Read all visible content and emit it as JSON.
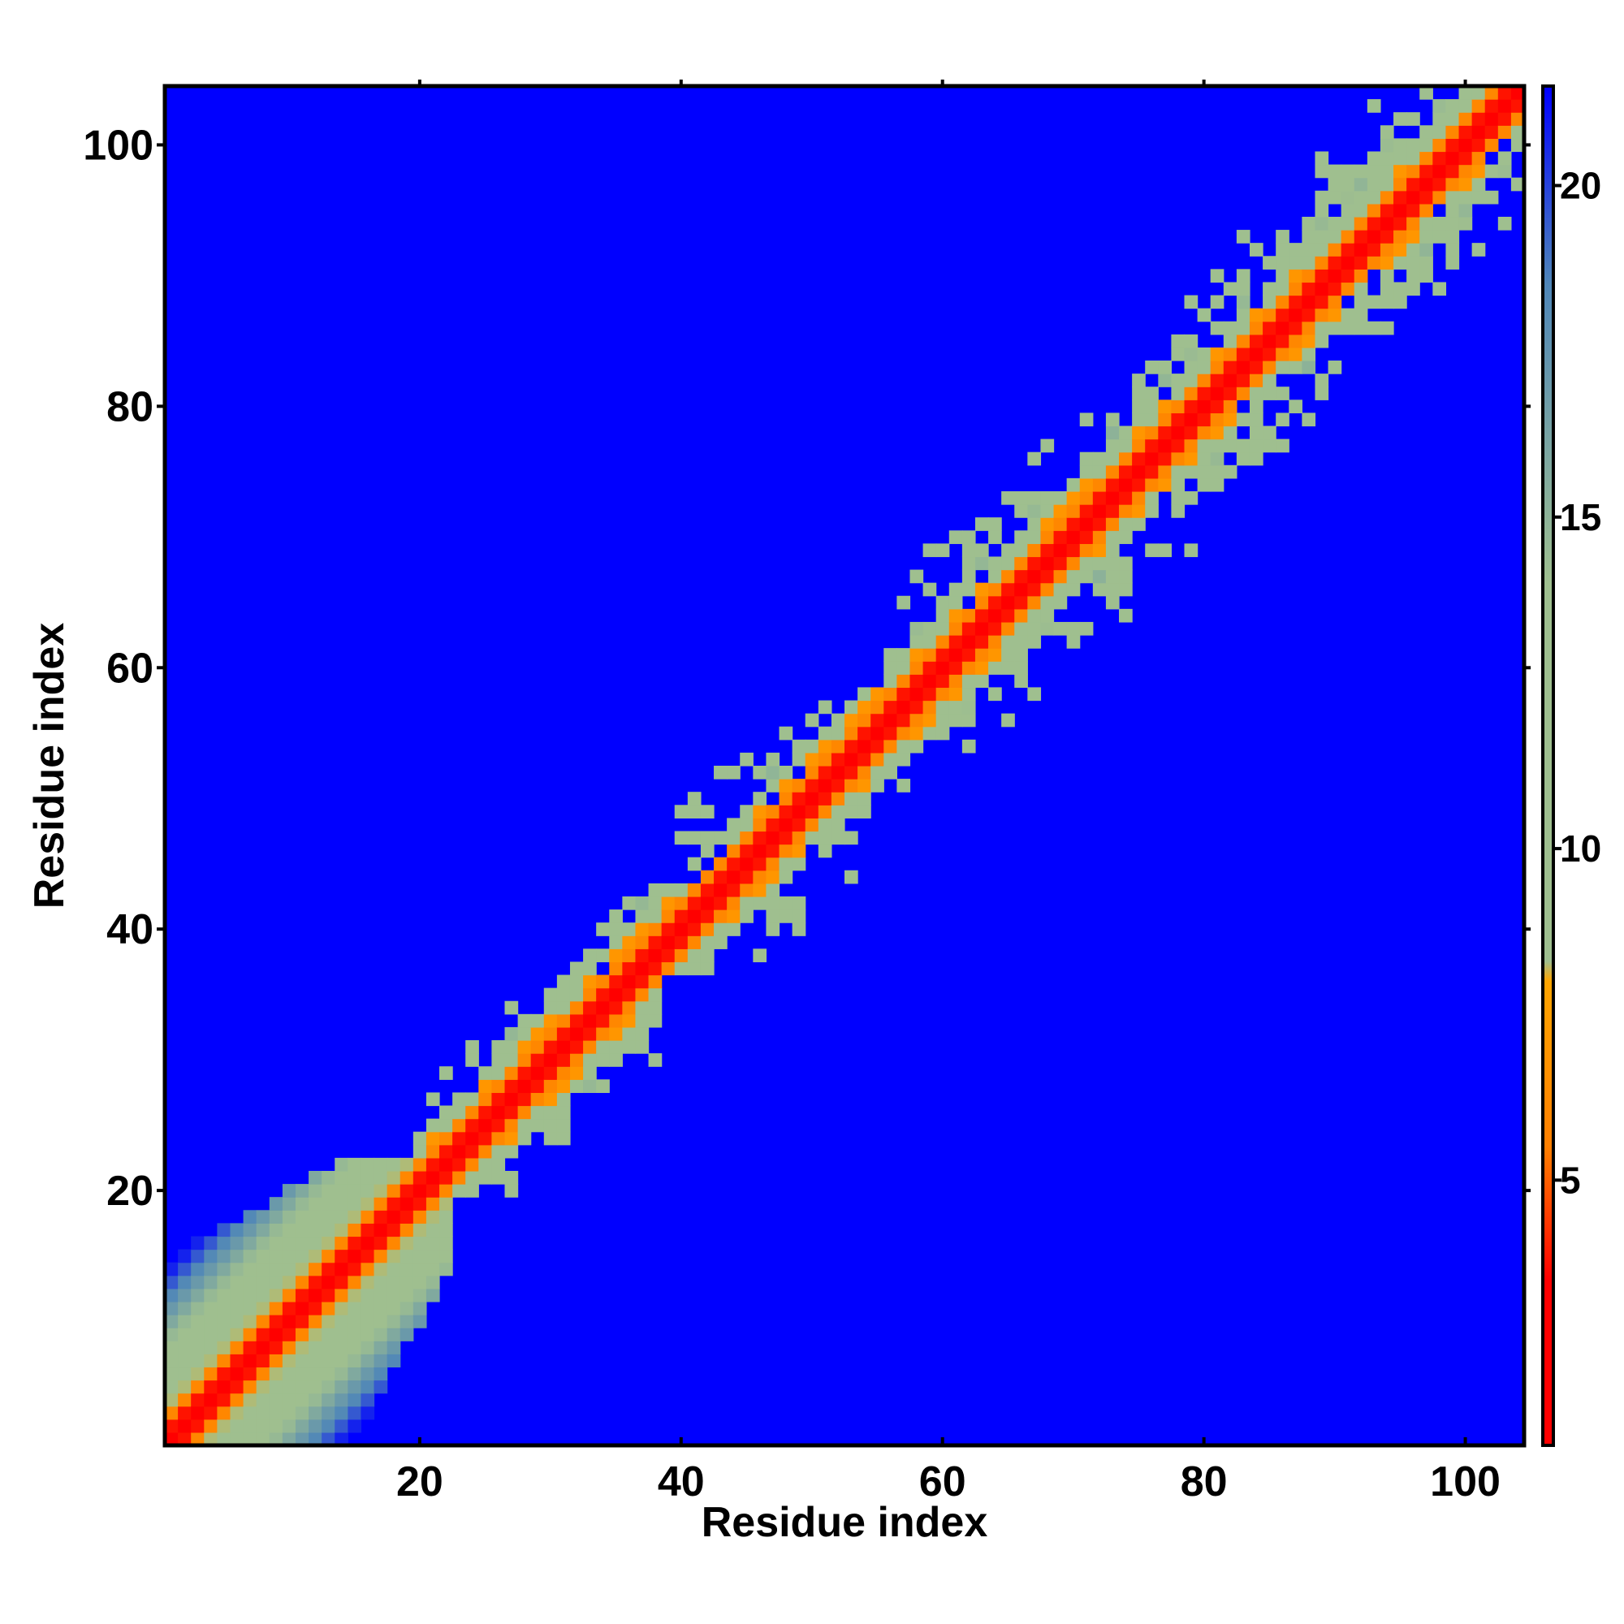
{
  "chart_data": {
    "type": "heatmap",
    "title": "",
    "xlabel": "Residue index",
    "ylabel": "Residue index",
    "n_residues": 104,
    "xlim": [
      0.5,
      104.5
    ],
    "ylim": [
      0.5,
      104.5
    ],
    "x_ticks": [
      20,
      40,
      60,
      80,
      100
    ],
    "y_ticks": [
      20,
      40,
      60,
      80,
      100
    ],
    "x_tick_labels": [
      "20",
      "40",
      "60",
      "80",
      "100"
    ],
    "y_tick_labels": [
      "20",
      "40",
      "60",
      "80",
      "100"
    ],
    "grid": false,
    "colorbar": {
      "placement": "right",
      "min": 1,
      "max": 21.5,
      "ticks": [
        5,
        10,
        15,
        20
      ],
      "tick_labels": [
        "5",
        "10",
        "15",
        "20"
      ],
      "stops": [
        {
          "value": 1,
          "color": "#ff0000"
        },
        {
          "value": 3.5,
          "color": "#ff0000"
        },
        {
          "value": 5.5,
          "color": "#ff7f00"
        },
        {
          "value": 8,
          "color": "#ffa500"
        },
        {
          "value": 8.3,
          "color": "#9fbf8f"
        },
        {
          "value": 14,
          "color": "#9fbf8f"
        },
        {
          "value": 18.5,
          "color": "#4f86b8"
        },
        {
          "value": 21.5,
          "color": "#0000ff"
        }
      ],
      "background_color": "#0000ff"
    },
    "description_values": {
      "diagonal_distance": 1.0,
      "first_neighbor_distance": 3.8,
      "second_neighbor_distance": 6.0,
      "background_distance": 21.5
    },
    "contact_regions": [
      {
        "x_range": [
          1,
          22
        ],
        "y_range": [
          1,
          22
        ],
        "max_offset": 14,
        "kind": "dense"
      },
      {
        "x_range": [
          20,
          38
        ],
        "y_range": [
          20,
          42
        ],
        "max_offset": 8,
        "kind": "sparse"
      },
      {
        "x_range": [
          38,
          57
        ],
        "y_range": [
          37,
          58
        ],
        "max_offset": 9,
        "kind": "sparse"
      },
      {
        "x_range": [
          56,
          80
        ],
        "y_range": [
          54,
          79
        ],
        "max_offset": 10,
        "kind": "sparse"
      },
      {
        "x_range": [
          75,
          104
        ],
        "y_range": [
          74,
          104
        ],
        "max_offset": 10,
        "kind": "sparse"
      }
    ]
  }
}
